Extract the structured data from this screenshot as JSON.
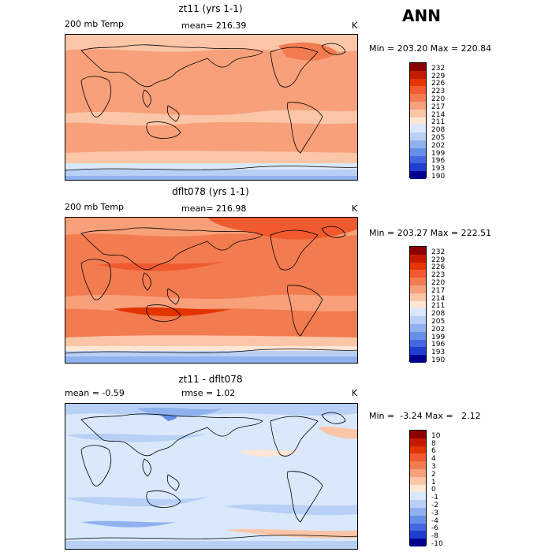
{
  "ann_title": "ANN",
  "panels": [
    {
      "title": "zt11 (yrs 1-1)",
      "left_label": "200 mb Temp",
      "center_label": "mean= 216.39",
      "units": "K",
      "minmax": "Min = 203.20 Max = 220.84",
      "colorbar_labels": [
        "232",
        "229",
        "226",
        "223",
        "220",
        "217",
        "214",
        "211",
        "208",
        "205",
        "202",
        "199",
        "196",
        "193",
        "190"
      ]
    },
    {
      "title": "dflt078 (yrs 1-1)",
      "left_label": "200 mb Temp",
      "center_label": "mean= 216.98",
      "units": "K",
      "minmax": "Min = 203.27 Max = 222.51",
      "colorbar_labels": [
        "232",
        "229",
        "226",
        "223",
        "220",
        "217",
        "214",
        "211",
        "208",
        "205",
        "202",
        "199",
        "196",
        "193",
        "190"
      ]
    },
    {
      "title": "zt11 - dflt078",
      "left_label": "mean =   -0.59",
      "center_label": "rmse =   1.02",
      "units": "K",
      "minmax": "Min =  -3.24 Max =   2.12",
      "colorbar_labels": [
        "10",
        "8",
        "6",
        "4",
        "3",
        "2",
        "1",
        "0",
        "-1",
        "-2",
        "-3",
        "-4",
        "-6",
        "-8",
        "-10"
      ]
    }
  ],
  "colorbar_colors": [
    "#8b0000",
    "#c41a00",
    "#e33400",
    "#f05a2e",
    "#f27c50",
    "#f7a07a",
    "#fbc6a8",
    "#fde6d6",
    "#d9e8fb",
    "#b8d0f6",
    "#8fb2ef",
    "#6690e8",
    "#4169e1",
    "#1f3fd0",
    "#00008b"
  ]
}
